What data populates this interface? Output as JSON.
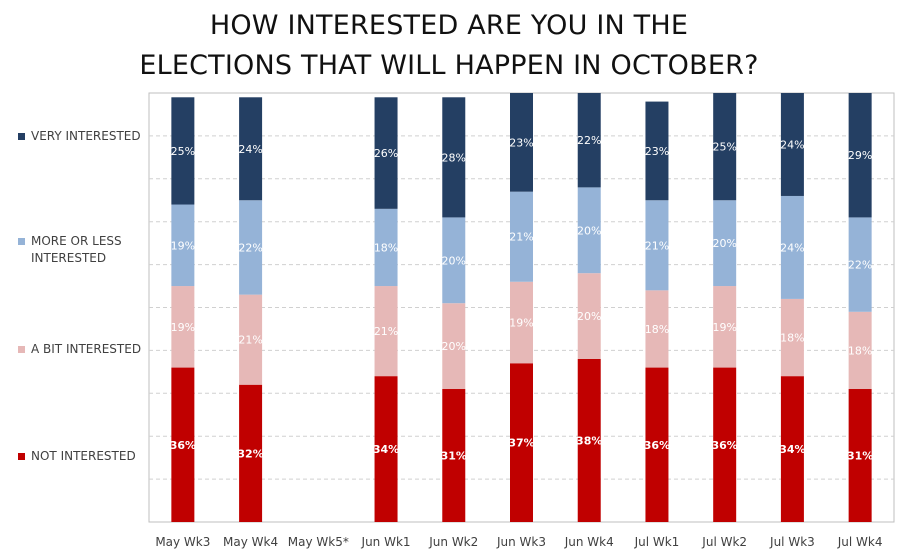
{
  "title": {
    "line1": "HOW INTERESTED ARE YOU IN THE",
    "line2": "ELECTIONS THAT WILL HAPPEN IN OCTOBER?"
  },
  "legend": [
    {
      "label_line1": "VERY INTERESTED",
      "label_line2": "",
      "color": "#243f63"
    },
    {
      "label_line1": "MORE OR LESS",
      "label_line2": "INTERESTED",
      "color": "#95b3d7"
    },
    {
      "label_line1": "A BIT INTERESTED",
      "label_line2": "",
      "color": "#e6b8b7"
    },
    {
      "label_line1": "NOT INTERESTED",
      "label_line2": "",
      "color": "#c00000"
    }
  ],
  "chart_data": {
    "type": "bar",
    "stacked": true,
    "title": "HOW INTERESTED ARE YOU IN THE ELECTIONS THAT WILL HAPPEN IN OCTOBER?",
    "categories": [
      "May Wk3",
      "May Wk4",
      "May Wk5*",
      "Jun Wk1",
      "Jun Wk2",
      "Jun Wk3",
      "Jun Wk4",
      "Jul Wk1",
      "Jul Wk2",
      "Jul Wk3",
      "Jul Wk4"
    ],
    "series": [
      {
        "name": "NOT INTERESTED",
        "color": "#c00000",
        "values": [
          36,
          32,
          null,
          34,
          31,
          37,
          38,
          36,
          36,
          34,
          31
        ]
      },
      {
        "name": "A BIT INTERESTED",
        "color": "#e6b8b7",
        "values": [
          19,
          21,
          null,
          21,
          20,
          19,
          20,
          18,
          19,
          18,
          18
        ]
      },
      {
        "name": "MORE OR LESS INTERESTED",
        "color": "#95b3d7",
        "values": [
          19,
          22,
          null,
          18,
          20,
          21,
          20,
          21,
          20,
          24,
          22
        ]
      },
      {
        "name": "VERY INTERESTED",
        "color": "#243f63",
        "values": [
          25,
          24,
          null,
          26,
          28,
          23,
          22,
          23,
          25,
          24,
          29
        ]
      }
    ],
    "value_suffix": "%",
    "ylim": [
      0,
      100
    ],
    "grid": true,
    "legend_position": "left"
  }
}
